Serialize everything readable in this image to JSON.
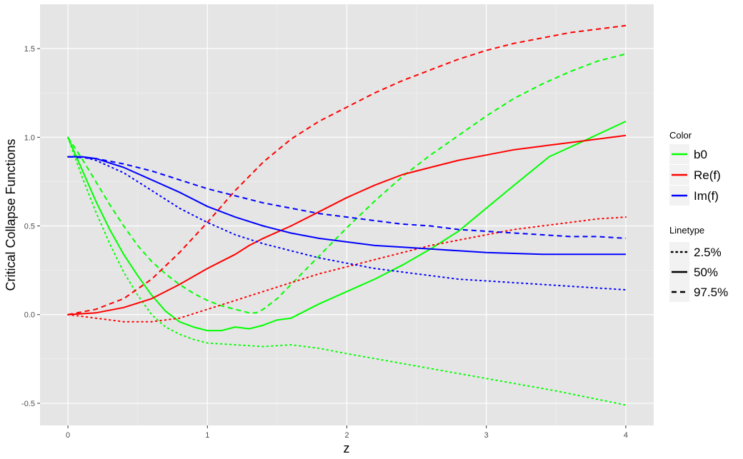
{
  "chart_data": {
    "type": "line",
    "xlabel": "z",
    "ylabel": "Critical Collapse Functions",
    "xlim": [
      -0.2,
      4.2
    ],
    "ylim": [
      -0.625,
      1.75
    ],
    "xticks": [
      0,
      1,
      2,
      3,
      4
    ],
    "xtick_labels": [
      "0",
      "1",
      "2",
      "3",
      "4"
    ],
    "yticks": [
      -0.5,
      0.0,
      0.5,
      1.0,
      1.5
    ],
    "ytick_labels": [
      "-0.5",
      "0.0",
      "0.5",
      "1.0",
      "1.5"
    ],
    "grid": true,
    "legend": {
      "position": "right",
      "color_title": "Color",
      "color_entries": [
        {
          "label": "b0",
          "color": "#00ff00"
        },
        {
          "label": "Re(f)",
          "color": "#ff0000"
        },
        {
          "label": "Im(f)",
          "color": "#0000ff"
        }
      ],
      "linetype_title": "Linetype",
      "linetype_entries": [
        {
          "label": "2.5%",
          "dash": "dotted"
        },
        {
          "label": "50%",
          "dash": "solid"
        },
        {
          "label": "97.5%",
          "dash": "dashed"
        }
      ]
    },
    "series": [
      {
        "group": "b0",
        "linetype": "2.5%",
        "color": "#00ff00",
        "dash": "dotted",
        "x": [
          0,
          0.1,
          0.2,
          0.3,
          0.4,
          0.5,
          0.6,
          0.7,
          0.8,
          0.9,
          1.0,
          1.2,
          1.4,
          1.6,
          1.8,
          2.0,
          2.5,
          3.0,
          3.5,
          4.0
        ],
        "y": [
          1.0,
          0.78,
          0.58,
          0.4,
          0.24,
          0.11,
          0.0,
          -0.07,
          -0.11,
          -0.14,
          -0.16,
          -0.17,
          -0.18,
          -0.17,
          -0.19,
          -0.22,
          -0.29,
          -0.36,
          -0.43,
          -0.51
        ]
      },
      {
        "group": "b0",
        "linetype": "50%",
        "color": "#00ff00",
        "dash": "solid",
        "x": [
          0,
          0.1,
          0.2,
          0.3,
          0.4,
          0.5,
          0.6,
          0.7,
          0.8,
          0.9,
          1.0,
          1.05,
          1.1,
          1.2,
          1.3,
          1.4,
          1.5,
          1.6,
          1.8,
          2.0,
          2.2,
          2.4,
          2.6,
          2.8,
          3.0,
          3.2,
          3.45,
          3.7,
          4.0
        ],
        "y": [
          1.0,
          0.82,
          0.64,
          0.48,
          0.34,
          0.22,
          0.11,
          0.02,
          -0.04,
          -0.07,
          -0.09,
          -0.09,
          -0.09,
          -0.07,
          -0.08,
          -0.06,
          -0.03,
          -0.02,
          0.06,
          0.13,
          0.2,
          0.28,
          0.37,
          0.47,
          0.6,
          0.73,
          0.89,
          0.98,
          1.09
        ]
      },
      {
        "group": "b0",
        "linetype": "97.5%",
        "color": "#00ff00",
        "dash": "dashed",
        "x": [
          0,
          0.1,
          0.2,
          0.3,
          0.4,
          0.5,
          0.6,
          0.7,
          0.8,
          0.9,
          1.0,
          1.1,
          1.2,
          1.3,
          1.35,
          1.4,
          1.5,
          1.6,
          1.8,
          2.0,
          2.2,
          2.4,
          2.6,
          2.8,
          3.0,
          3.2,
          3.4,
          3.6,
          3.8,
          4.0
        ],
        "y": [
          1.0,
          0.88,
          0.75,
          0.62,
          0.5,
          0.39,
          0.3,
          0.23,
          0.17,
          0.12,
          0.08,
          0.05,
          0.03,
          0.01,
          0.01,
          0.03,
          0.09,
          0.17,
          0.33,
          0.49,
          0.64,
          0.78,
          0.9,
          1.01,
          1.12,
          1.22,
          1.3,
          1.37,
          1.43,
          1.47
        ]
      },
      {
        "group": "Re(f)",
        "linetype": "2.5%",
        "color": "#ff0000",
        "dash": "dotted",
        "x": [
          0,
          0.2,
          0.4,
          0.6,
          0.8,
          1.0,
          1.2,
          1.4,
          1.6,
          1.8,
          2.0,
          2.2,
          2.4,
          2.6,
          2.8,
          3.0,
          3.2,
          3.4,
          3.6,
          3.8,
          4.0
        ],
        "y": [
          0.0,
          -0.02,
          -0.04,
          -0.04,
          -0.02,
          0.03,
          0.08,
          0.13,
          0.18,
          0.23,
          0.27,
          0.31,
          0.35,
          0.39,
          0.42,
          0.45,
          0.48,
          0.5,
          0.52,
          0.54,
          0.55
        ]
      },
      {
        "group": "Re(f)",
        "linetype": "50%",
        "color": "#ff0000",
        "dash": "solid",
        "x": [
          0,
          0.2,
          0.4,
          0.6,
          0.8,
          1.0,
          1.1,
          1.2,
          1.3,
          1.4,
          1.6,
          1.8,
          2.0,
          2.2,
          2.4,
          2.6,
          2.8,
          3.0,
          3.2,
          3.4,
          3.6,
          3.8,
          4.0
        ],
        "y": [
          0.0,
          0.01,
          0.04,
          0.09,
          0.17,
          0.26,
          0.3,
          0.34,
          0.39,
          0.43,
          0.5,
          0.58,
          0.66,
          0.73,
          0.79,
          0.83,
          0.87,
          0.9,
          0.93,
          0.95,
          0.97,
          0.99,
          1.01
        ]
      },
      {
        "group": "Re(f)",
        "linetype": "97.5%",
        "color": "#ff0000",
        "dash": "dashed",
        "x": [
          0,
          0.2,
          0.4,
          0.6,
          0.8,
          1.0,
          1.2,
          1.4,
          1.6,
          1.8,
          2.0,
          2.2,
          2.4,
          2.6,
          2.8,
          3.0,
          3.2,
          3.4,
          3.6,
          3.8,
          4.0
        ],
        "y": [
          0.0,
          0.03,
          0.09,
          0.2,
          0.35,
          0.52,
          0.7,
          0.86,
          0.99,
          1.09,
          1.17,
          1.25,
          1.32,
          1.38,
          1.44,
          1.49,
          1.53,
          1.56,
          1.59,
          1.61,
          1.63
        ]
      },
      {
        "group": "Im(f)",
        "linetype": "2.5%",
        "color": "#0000ff",
        "dash": "dotted",
        "x": [
          0,
          0.1,
          0.2,
          0.4,
          0.6,
          0.8,
          1.0,
          1.2,
          1.4,
          1.6,
          1.8,
          2.0,
          2.2,
          2.4,
          2.6,
          2.8,
          3.0,
          3.2,
          3.4,
          3.6,
          3.8,
          4.0
        ],
        "y": [
          0.89,
          0.89,
          0.87,
          0.8,
          0.7,
          0.6,
          0.52,
          0.45,
          0.4,
          0.36,
          0.32,
          0.29,
          0.26,
          0.24,
          0.22,
          0.2,
          0.19,
          0.18,
          0.17,
          0.16,
          0.15,
          0.14
        ]
      },
      {
        "group": "Im(f)",
        "linetype": "50%",
        "color": "#0000ff",
        "dash": "solid",
        "x": [
          0,
          0.1,
          0.2,
          0.4,
          0.6,
          0.8,
          1.0,
          1.2,
          1.4,
          1.6,
          1.8,
          2.0,
          2.2,
          2.4,
          2.6,
          2.8,
          3.0,
          3.2,
          3.4,
          3.6,
          3.8,
          4.0
        ],
        "y": [
          0.89,
          0.89,
          0.88,
          0.83,
          0.76,
          0.69,
          0.61,
          0.55,
          0.5,
          0.46,
          0.43,
          0.41,
          0.39,
          0.38,
          0.37,
          0.36,
          0.35,
          0.345,
          0.34,
          0.34,
          0.34,
          0.34
        ]
      },
      {
        "group": "Im(f)",
        "linetype": "97.5%",
        "color": "#0000ff",
        "dash": "dashed",
        "x": [
          0,
          0.2,
          0.4,
          0.6,
          0.8,
          1.0,
          1.2,
          1.4,
          1.6,
          1.8,
          2.0,
          2.2,
          2.4,
          2.6,
          2.8,
          3.0,
          3.2,
          3.4,
          3.6,
          3.8,
          4.0
        ],
        "y": [
          0.89,
          0.88,
          0.85,
          0.81,
          0.76,
          0.71,
          0.67,
          0.63,
          0.6,
          0.57,
          0.55,
          0.53,
          0.51,
          0.5,
          0.48,
          0.47,
          0.46,
          0.45,
          0.44,
          0.44,
          0.43
        ]
      }
    ]
  }
}
